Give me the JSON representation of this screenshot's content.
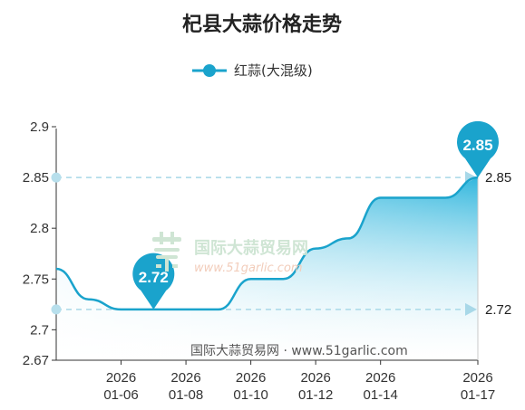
{
  "chart_data": {
    "type": "area",
    "title": "杞县大蒜价格走势",
    "legend": {
      "position": "top",
      "entries": [
        "红蒜(大混级)"
      ]
    },
    "series": [
      {
        "name": "红蒜(大混级)",
        "color": "#1aa3cc",
        "points": [
          {
            "x": "2026-01-04",
            "y": 2.76
          },
          {
            "x": "2026-01-05",
            "y": 2.73
          },
          {
            "x": "2026-01-06",
            "y": 2.72
          },
          {
            "x": "2026-01-07",
            "y": 2.72
          },
          {
            "x": "2026-01-08",
            "y": 2.72
          },
          {
            "x": "2026-01-09",
            "y": 2.72
          },
          {
            "x": "2026-01-10",
            "y": 2.75
          },
          {
            "x": "2026-01-11",
            "y": 2.75
          },
          {
            "x": "2026-01-12",
            "y": 2.78
          },
          {
            "x": "2026-01-13",
            "y": 2.79
          },
          {
            "x": "2026-01-14",
            "y": 2.83
          },
          {
            "x": "2026-01-15",
            "y": 2.83
          },
          {
            "x": "2026-01-16",
            "y": 2.83
          },
          {
            "x": "2026-01-17",
            "y": 2.85
          }
        ]
      }
    ],
    "x_ticks": [
      {
        "date": "2026-01-06",
        "label": [
          "2026",
          "01-06"
        ]
      },
      {
        "date": "2026-01-08",
        "label": [
          "2026",
          "01-08"
        ]
      },
      {
        "date": "2026-01-10",
        "label": [
          "2026",
          "01-10"
        ]
      },
      {
        "date": "2026-01-12",
        "label": [
          "2026",
          "01-12"
        ]
      },
      {
        "date": "2026-01-14",
        "label": [
          "2026",
          "01-14"
        ]
      },
      {
        "date": "2026-01-17",
        "label": [
          "2026",
          "01-17"
        ]
      }
    ],
    "y_ticks": [
      2.67,
      2.7,
      2.75,
      2.8,
      2.85,
      2.9
    ],
    "y_tick_labels": [
      "2.67",
      "2.7",
      "2.75",
      "2.8",
      "2.85",
      "2.9"
    ],
    "ylim": [
      2.67,
      2.9
    ],
    "annotations": {
      "min": {
        "value": "2.72",
        "date": "2026-01-07"
      },
      "max": {
        "value": "2.85",
        "date": "2026-01-17"
      }
    },
    "reference_lines": [
      {
        "value": 2.85,
        "label": "2.85"
      },
      {
        "value": 2.72,
        "label": "2.72"
      }
    ],
    "grid": false
  },
  "watermark": {
    "name": "国际大蒜贸易网",
    "url": "www.51garlic.com"
  },
  "footer": {
    "text": "国际大蒜贸易网 · www.51garlic.com"
  },
  "colors": {
    "line": "#1aa3cc",
    "area_top": "#27b3dc",
    "area_bottom": "#ffffff",
    "reference": "#a8d8e8",
    "pin": "#1aa3cc"
  }
}
